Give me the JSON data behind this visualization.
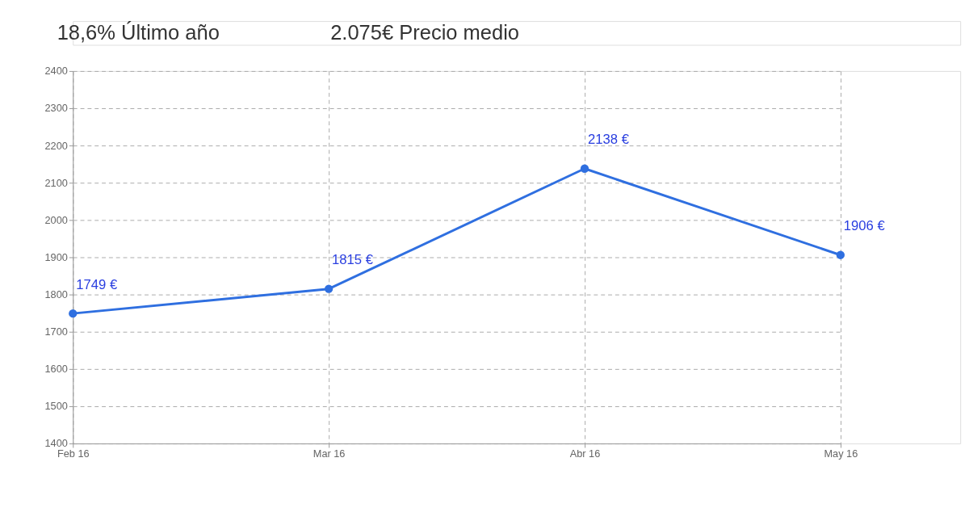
{
  "chart_data": {
    "type": "line",
    "annotations": [
      "18,6% Último año",
      "2.075€ Precio medio"
    ],
    "categories": [
      "Feb 16",
      "Mar 16",
      "Abr 16",
      "May 16"
    ],
    "series": [
      {
        "color": "#2f6fe0",
        "values": [
          1749,
          1815,
          2138,
          1906
        ],
        "value_labels": [
          "1749 €",
          "1815 €",
          "2138 €",
          "1906 €"
        ]
      }
    ],
    "ylim": [
      1400,
      2400
    ],
    "yticks": [
      1400,
      1500,
      1600,
      1700,
      1800,
      1900,
      2000,
      2100,
      2200,
      2300,
      2400
    ],
    "grid": true,
    "marker": "circle",
    "line_style": "solid"
  }
}
